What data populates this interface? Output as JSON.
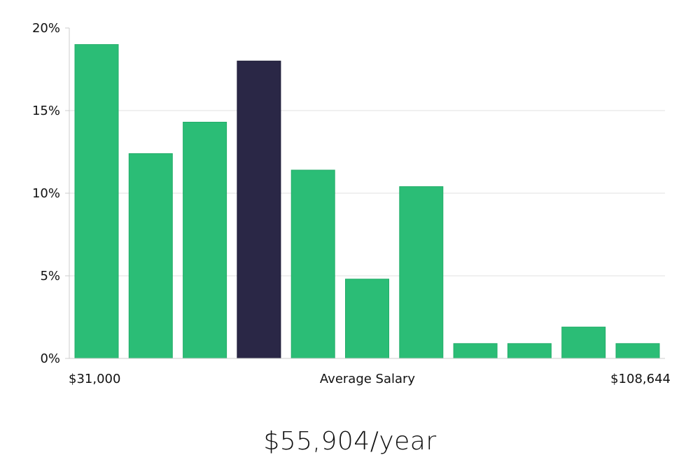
{
  "chart_data": {
    "type": "bar",
    "title": "",
    "xlabel": "Average Salary",
    "ylabel": "",
    "x_range_labels": {
      "min": "$31,000",
      "max": "$108,644"
    },
    "y_ticks": [
      "0%",
      "5%",
      "10%",
      "15%",
      "20%"
    ],
    "ylim": [
      0,
      20
    ],
    "values": [
      19,
      12.4,
      14.3,
      18,
      11.4,
      4.8,
      10.4,
      0.9,
      0.9,
      1.9,
      0.9
    ],
    "highlight_index": 3,
    "colors": {
      "bar": "#2bbd76",
      "highlight": "#2a2746",
      "grid": "#e2e2e2",
      "axis": "#cccccc"
    }
  },
  "summary": {
    "salary": "$55,904/year"
  }
}
